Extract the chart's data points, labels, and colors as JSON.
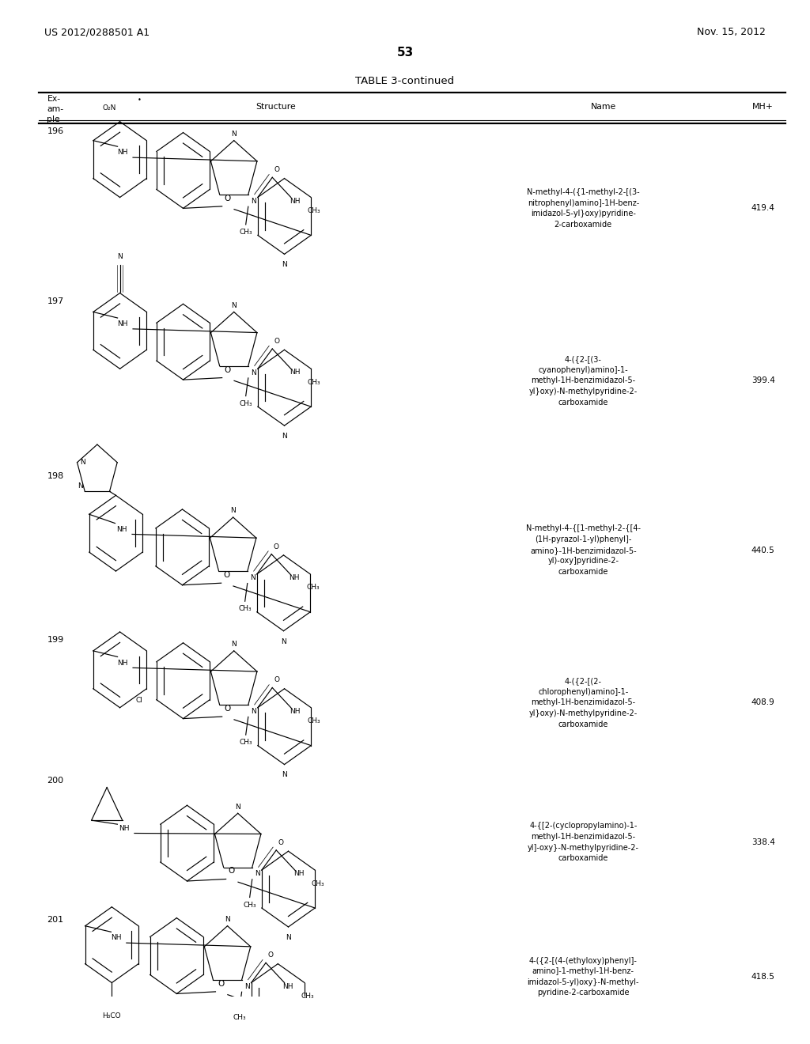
{
  "left_header": "US 2012/0288501 A1",
  "right_header": "Nov. 15, 2012",
  "page_number": "53",
  "table_title": "TABLE 3-continued",
  "col_headers": [
    "Ex-\nam-\nple",
    "Structure",
    "Name",
    "MH+"
  ],
  "rows": [
    {
      "ex": "196",
      "name": "N-methyl-4-({1-methyl-2-[(3-\nnitrophenyl)amino]-1H-benz-\nimidazol-5-yl}oxy)pyridine-\n2-carboxamide",
      "mh": "419.4"
    },
    {
      "ex": "197",
      "name": "4-({2-[(3-\ncyanophenyl)amino]-1-\nmethyl-1H-benzimidazol-5-\nyl}oxy)-N-methylpyridine-2-\ncarboxamide",
      "mh": "399.4"
    },
    {
      "ex": "198",
      "name": "N-methyl-4-{[1-methyl-2-{[4-\n(1H-pyrazol-1-yl)phenyl]-\namino}-1H-benzimidazol-5-\nyl)-oxy]pyridine-2-\ncarboxamide",
      "mh": "440.5"
    },
    {
      "ex": "199",
      "name": "4-({2-[(2-\nchlorophenyl)amino]-1-\nmethyl-1H-benzimidazol-5-\nyl}oxy)-N-methylpyridine-2-\ncarboxamide",
      "mh": "408.9"
    },
    {
      "ex": "200",
      "name": "4-{[2-(cyclopropylamino)-1-\nmethyl-1H-benzimidazol-5-\nyl]-oxy}-N-methylpyridine-2-\ncarboxamide",
      "mh": "338.4"
    },
    {
      "ex": "201",
      "name": "4-({2-[(4-(ethyloxy)phenyl]-\namino]-1-methyl-1H-benz-\nimidazol-5-yl)oxy}-N-methyl-\npyridine-2-carboxamide",
      "mh": "418.5"
    }
  ],
  "row_tops": [
    0.876,
    0.706,
    0.53,
    0.366,
    0.225,
    0.085
  ],
  "row_mids": [
    0.791,
    0.618,
    0.448,
    0.295,
    0.155,
    0.02
  ],
  "bg_color": "#ffffff"
}
